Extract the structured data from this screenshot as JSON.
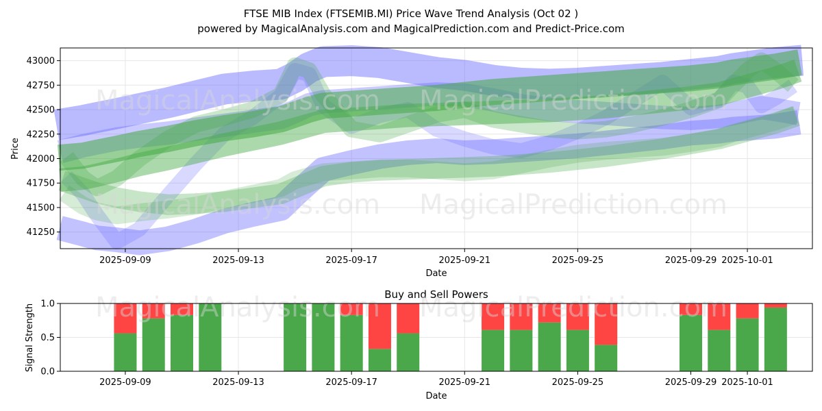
{
  "header": {
    "title_line1": "FTSE MIB Index (FTSEMIB.MI) Price Wave Trend Analysis (Oct 02 )",
    "title_line2": "powered by MagicalAnalysis.com and MagicalPrediction.com and Predict-Price.com"
  },
  "watermarks": [
    "MagicalAnalysis.com",
    "MagicalPrediction.com"
  ],
  "colors": {
    "buy": "#4aa84a",
    "sell": "#ff4444",
    "blue_band": "#6666ff",
    "green_band": "#44aa44",
    "grid": "#e6e6e6"
  },
  "chart_data": [
    {
      "type": "area",
      "title": "",
      "xlabel": "Date",
      "ylabel": "Price",
      "x_tick_labels": [
        "2025-09-09",
        "2025-09-13",
        "2025-09-17",
        "2025-09-21",
        "2025-09-25",
        "2025-09-29",
        "2025-10-01"
      ],
      "y_ticks": [
        41250,
        41500,
        41750,
        42000,
        42250,
        42500,
        42750,
        43000
      ],
      "ylim": [
        41080,
        43130
      ],
      "xlim_days": [
        -2.3,
        24.3
      ],
      "x_day_offset_of": "2025-09-09",
      "grid": true,
      "band_days": [
        -1.9,
        -1.5,
        -1.0,
        -0.3,
        0.5,
        1.5,
        2.5,
        3.5,
        4.5,
        5.5,
        6.0,
        6.5,
        7.0,
        8.0,
        9.0,
        10.0,
        11.0,
        12.0,
        13.0,
        14.0,
        15.0,
        16.0,
        17.0,
        18.0,
        19.0,
        20.0,
        21.0,
        21.5,
        22.0,
        22.5,
        23.0,
        23.4
      ],
      "series": [
        {
          "name": "blue-upper",
          "color": "blue",
          "opacity": 0.45,
          "width": 45,
          "values": [
            42370,
            42390,
            42420,
            42460,
            42510,
            42570,
            42640,
            42710,
            42740,
            42760,
            42830,
            42930,
            42990,
            43000,
            42980,
            42930,
            42880,
            42850,
            42800,
            42770,
            42760,
            42770,
            42790,
            42810,
            42830,
            42860,
            42890,
            42920,
            42940,
            42960,
            42980,
            42990
          ]
        },
        {
          "name": "blue-mid",
          "color": "blue",
          "opacity": 0.35,
          "width": 34,
          "values": [
            42100,
            42130,
            42160,
            42200,
            42230,
            42260,
            42300,
            42340,
            42380,
            42420,
            42480,
            42550,
            42580,
            42600,
            42620,
            42640,
            42660,
            42650,
            42600,
            42540,
            42500,
            42480,
            42460,
            42440,
            42420,
            42410,
            42430,
            42460,
            42490,
            42520,
            42500,
            42480
          ]
        },
        {
          "name": "blue-lower",
          "color": "blue",
          "opacity": 0.4,
          "width": 36,
          "values": [
            41260,
            41230,
            41190,
            41170,
            41140,
            41180,
            41260,
            41360,
            41430,
            41490,
            41630,
            41760,
            41890,
            41960,
            42020,
            42060,
            42080,
            42060,
            42070,
            42090,
            42110,
            42130,
            42160,
            42190,
            42220,
            42260,
            42280,
            42300,
            42310,
            42320,
            42330,
            42350
          ]
        },
        {
          "name": "blue-wave",
          "color": "blue",
          "opacity": 0.25,
          "width": 22,
          "values": [
            41760,
            41640,
            41420,
            41150,
            41280,
            41620,
            41950,
            42250,
            42420,
            42640,
            42900,
            42860,
            42540,
            42330,
            42440,
            42500,
            42300,
            42200,
            42120,
            42080,
            42160,
            42280,
            42420,
            42600,
            42780,
            42520,
            42600,
            42780,
            42740,
            42540,
            42620,
            42700
          ]
        },
        {
          "name": "green-upper",
          "color": "green",
          "opacity": 0.55,
          "width": 38,
          "values": [
            42020,
            42030,
            42060,
            42100,
            42150,
            42200,
            42260,
            42310,
            42350,
            42400,
            42450,
            42500,
            42540,
            42560,
            42580,
            42600,
            42620,
            42650,
            42680,
            42700,
            42720,
            42740,
            42760,
            42780,
            42800,
            42820,
            42850,
            42880,
            42900,
            42920,
            42940,
            42960
          ]
        },
        {
          "name": "green-mid",
          "color": "green",
          "opacity": 0.45,
          "width": 34,
          "values": [
            41790,
            41800,
            41830,
            41880,
            41940,
            42000,
            42070,
            42140,
            42200,
            42260,
            42300,
            42340,
            42380,
            42400,
            42420,
            42440,
            42450,
            42460,
            42470,
            42480,
            42490,
            42510,
            42530,
            42560,
            42590,
            42620,
            42660,
            42700,
            42740,
            42780,
            42820,
            42860
          ]
        },
        {
          "name": "green-lower",
          "color": "green",
          "opacity": 0.3,
          "width": 30,
          "values": [
            41740,
            41700,
            41650,
            41600,
            41560,
            41530,
            41540,
            41560,
            41600,
            41640,
            41700,
            41760,
            41820,
            41860,
            41880,
            41890,
            41900,
            41910,
            41920,
            41940,
            41960,
            41990,
            42020,
            42060,
            42100,
            42150,
            42200,
            42240,
            42280,
            42320,
            42360,
            42400
          ]
        },
        {
          "name": "green-wave",
          "color": "green",
          "opacity": 0.28,
          "width": 24,
          "values": [
            41950,
            41800,
            41700,
            41800,
            42000,
            42200,
            42350,
            42420,
            42500,
            42650,
            42950,
            42900,
            42650,
            42300,
            42250,
            42350,
            42450,
            42500,
            42400,
            42350,
            42300,
            42280,
            42300,
            42350,
            42420,
            42500,
            42600,
            42750,
            42900,
            43000,
            42900,
            42800
          ]
        },
        {
          "name": "green-low-wave",
          "color": "green",
          "opacity": 0.22,
          "width": 26,
          "values": [
            41600,
            41520,
            41460,
            41420,
            41450,
            41480,
            41520,
            41580,
            41640,
            41700,
            41780,
            41820,
            41860,
            41880,
            41900,
            41900,
            41880,
            41860,
            41880,
            41940,
            42000,
            42050,
            42080,
            42100,
            42120,
            42160,
            42210,
            42260,
            42300,
            42340,
            42380,
            42420
          ]
        }
      ]
    },
    {
      "type": "bar",
      "title": "Buy and Sell Powers",
      "xlabel": "Date",
      "ylabel": "Signal Strength",
      "ylim": [
        0,
        1
      ],
      "y_ticks": [
        "0.0",
        "0.5",
        "1.0"
      ],
      "x_tick_labels": [
        "2025-09-09",
        "2025-09-13",
        "2025-09-17",
        "2025-09-21",
        "2025-09-25",
        "2025-09-29",
        "2025-10-01"
      ],
      "xlim_days": [
        -2.3,
        24.3
      ],
      "series": [
        {
          "name": "Buy",
          "color": "green",
          "values": [
            0.56,
            0.78,
            0.83,
            1.0,
            1.0,
            1.0,
            0.83,
            0.33,
            0.56,
            0.61,
            0.61,
            0.72,
            0.61,
            0.39,
            0.83,
            0.61,
            0.78,
            0.94
          ]
        },
        {
          "name": "Sell",
          "color": "red",
          "values": [
            0.44,
            0.22,
            0.17,
            0.0,
            0.0,
            0.0,
            0.17,
            0.67,
            0.44,
            0.39,
            0.39,
            0.28,
            0.39,
            0.61,
            0.17,
            0.39,
            0.22,
            0.06
          ]
        }
      ],
      "bar_days": [
        0,
        1,
        2,
        3,
        6,
        7,
        8,
        9,
        10,
        13,
        14,
        15,
        16,
        17,
        20,
        21,
        22,
        23
      ]
    }
  ]
}
